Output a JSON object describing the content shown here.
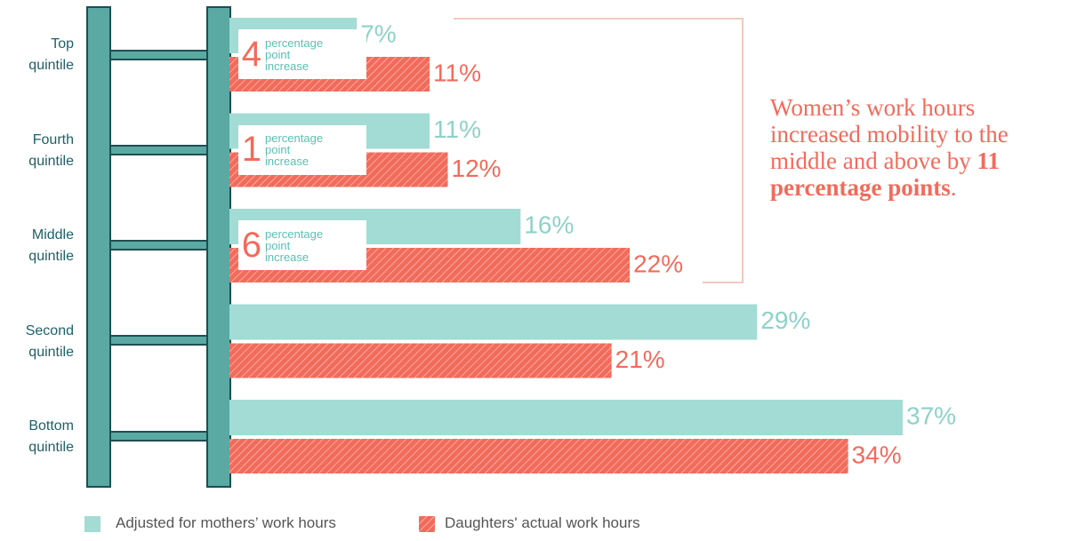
{
  "chart_data": {
    "type": "bar",
    "categories": [
      "Top quintile",
      "Fourth quintile",
      "Middle quintile",
      "Second quintile",
      "Bottom quintile"
    ],
    "series": [
      {
        "name": "Adjusted for mothers’ work hours",
        "color": "#a2dcd4",
        "values": [
          7,
          11,
          16,
          29,
          37
        ],
        "value_labels": [
          "7%",
          "11%",
          "16%",
          "29%",
          "37%"
        ]
      },
      {
        "name": "Daughters' actual work hours",
        "color": "#f26b5b",
        "values": [
          11,
          12,
          22,
          21,
          34
        ],
        "value_labels": [
          "11%",
          "12%",
          "22%",
          "21%",
          "34%"
        ]
      }
    ],
    "annotations": [
      {
        "value": 4,
        "label": "percentage point increase"
      },
      {
        "value": 1,
        "label": "percentage point increase"
      },
      {
        "value": 6,
        "label": "percentage point increase"
      }
    ],
    "callout": {
      "text": "Women’s work hours increased mobility to the middle and above by ",
      "emphasis": "11 percentage points",
      "end": "."
    }
  }
}
